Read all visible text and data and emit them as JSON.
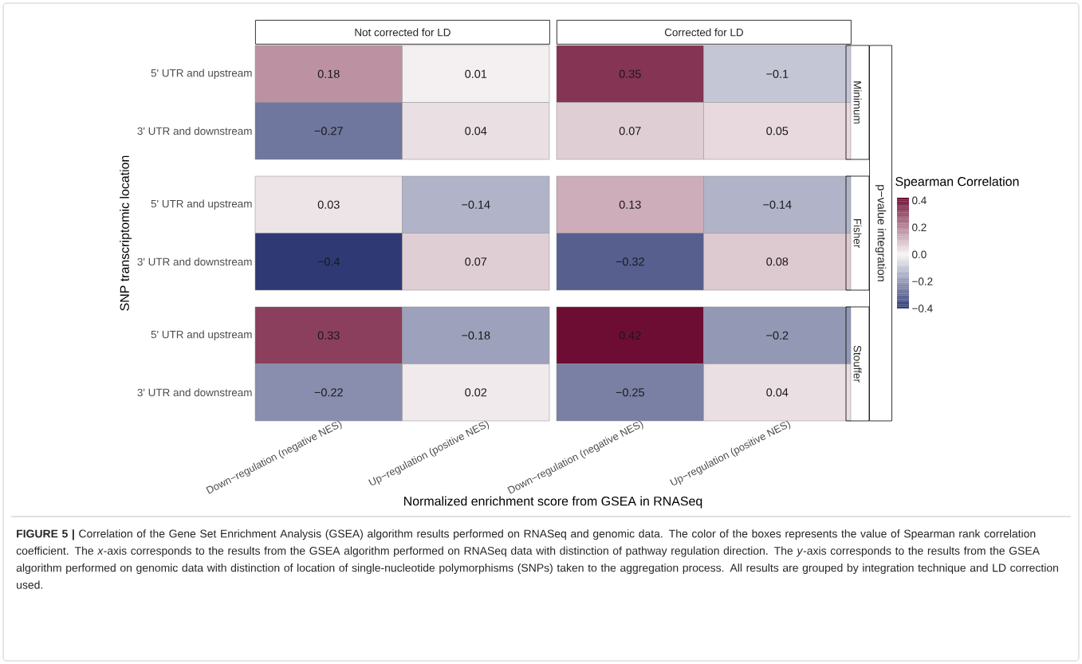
{
  "chart_data": {
    "type": "heatmap",
    "xlabel": "Normalized enrichment score from GSEA in RNASeq",
    "ylabel": "SNP transcriptomic location",
    "categories": [
      "Down−regulation (negative NES)",
      "Up−regulation (positive NES)",
      "Down−regulation (negative NES)",
      "Up−regulation (positive NES)"
    ],
    "y_categories": [
      "5' UTR and upstream",
      "3' UTR and downstream",
      "5' UTR and upstream",
      "3' UTR and downstream",
      "5' UTR and upstream",
      "3' UTR and downstream"
    ],
    "cells": [
      [
        0.18,
        0.01,
        0.35,
        -0.1
      ],
      [
        -0.27,
        0.04,
        0.07,
        0.05
      ],
      [
        0.03,
        -0.14,
        0.13,
        -0.14
      ],
      [
        -0.4,
        0.07,
        -0.32,
        0.08
      ],
      [
        0.33,
        -0.18,
        0.42,
        -0.2
      ],
      [
        -0.22,
        0.02,
        -0.25,
        0.04
      ]
    ],
    "data_labels": true,
    "clim": [
      -0.4,
      0.42
    ],
    "clabel": "Spearman Correlation",
    "cticks": [
      0.4,
      0.2,
      {
        "value": 0,
        "label": "0.0"
      },
      {
        "value": -0.2,
        "label": "−0.2"
      },
      {
        "value": -0.4,
        "label": "−0.4"
      }
    ],
    "annotations": [
      "Not corrected for LD",
      "Corrected for LD",
      "Minimum",
      "Fisher",
      "Stouffer",
      "p−value integration",
      "**FIGURE 5 |** Correlation of the Gene Set Enrichment Analysis (GSEA) algorithm results performed on RNASeq and genomic data. The color of the boxes represents the value of Spearman rank correlation coefficient. The *x*-axis corresponds to the results from the GSEA algorithm performed on RNASeq data with distinction of pathway regulation direction. The *y*-axis corresponds to the results from the GSEA algorithm performed on genomic data with distinction of location of single-nucleotide polymorphisms (SNPs) taken to the aggregation process. All results are grouped by integration technique and LD correction used."
    ]
  }
}
